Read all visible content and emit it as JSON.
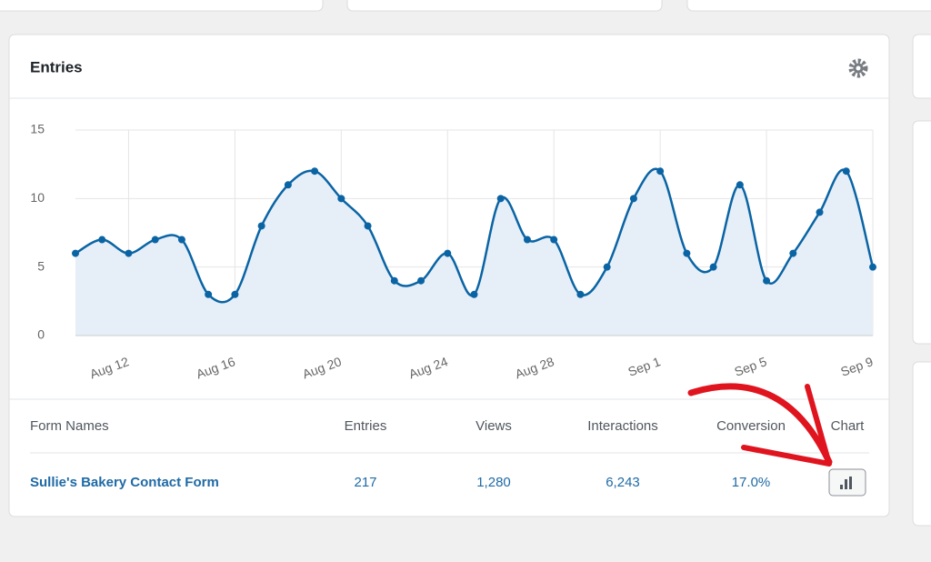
{
  "panel": {
    "title": "Entries"
  },
  "chart_data": {
    "type": "line",
    "color": "#0a64a4",
    "fill": "#e6eff8",
    "grid": true,
    "categories": [
      null,
      null,
      "Aug 12",
      null,
      null,
      null,
      "Aug 16",
      null,
      null,
      null,
      "Aug 20",
      null,
      null,
      null,
      "Aug 24",
      null,
      null,
      null,
      "Aug 28",
      null,
      null,
      null,
      "Sep 1",
      null,
      null,
      null,
      "Sep 5",
      null,
      null,
      null,
      "Sep 9"
    ],
    "values": [
      6,
      7,
      6,
      7,
      7,
      3,
      3,
      8,
      11,
      12,
      10,
      8,
      4,
      4,
      6,
      3,
      10,
      7,
      7,
      3,
      5,
      10,
      12,
      6,
      5,
      11,
      4,
      6,
      9,
      12,
      5
    ],
    "ylim": [
      0,
      15
    ],
    "yticks": [
      0,
      5,
      10,
      15
    ]
  },
  "table": {
    "headers": [
      "Form Names",
      "Entries",
      "Views",
      "Interactions",
      "Conversion",
      "Chart"
    ],
    "rows": [
      [
        "Sullie's Bakery Contact Form",
        "217",
        "1,280",
        "6,243",
        "17.0%"
      ]
    ]
  }
}
